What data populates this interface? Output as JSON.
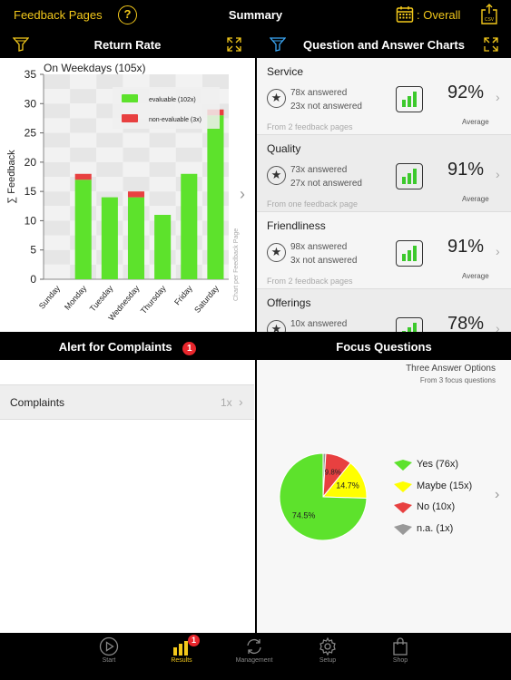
{
  "topbar": {
    "left_label": "Feedback Pages",
    "help_label": "?",
    "title": "Summary",
    "period_label": ": Overall",
    "csv_label": "CSV"
  },
  "return_rate": {
    "header": "Return Rate",
    "side_label": "Chart per Feedback Page"
  },
  "qa_charts": {
    "header": "Question and Answer Charts",
    "items": [
      {
        "name": "Service",
        "answered": "78x answered",
        "not_answered": "23x not answered",
        "from": "From 2 feedback pages",
        "percent": "92%",
        "avg_label": "Average"
      },
      {
        "name": "Quality",
        "answered": "73x answered",
        "not_answered": "27x not answered",
        "from": "From one feedback page",
        "percent": "91%",
        "avg_label": "Average"
      },
      {
        "name": "Friendliness",
        "answered": "98x answered",
        "not_answered": "3x not answered",
        "from": "From 2 feedback pages",
        "percent": "91%",
        "avg_label": "Average"
      },
      {
        "name": "Offerings",
        "answered": "10x answered",
        "not_answered": "",
        "from": "",
        "percent": "78%",
        "avg_label": ""
      }
    ]
  },
  "alerts": {
    "header": "Alert for Complaints",
    "badge": "1",
    "rows": [
      {
        "label": "Complaints",
        "count": "1x"
      }
    ]
  },
  "focus": {
    "header": "Focus Questions",
    "subtitle": "Three Answer Options",
    "sub_subtitle": "From 3 focus questions"
  },
  "tabs": [
    {
      "label": "Start",
      "icon": "play-icon",
      "active": false
    },
    {
      "label": "Results",
      "icon": "bar-chart-icon",
      "active": true,
      "badge": "1"
    },
    {
      "label": "Management",
      "icon": "sync-icon",
      "active": false
    },
    {
      "label": "Setup",
      "icon": "gear-icon",
      "active": false
    },
    {
      "label": "Shop",
      "icon": "shopping-bag-icon",
      "active": false
    }
  ],
  "colors": {
    "accent": "#f2c81b",
    "green": "#5de22c",
    "red": "#e84040",
    "yellow": "#ffff00",
    "gray": "#999999",
    "badge": "#e8262c"
  },
  "chart_data": [
    {
      "type": "bar",
      "title": "On Weekdays (105x)",
      "ylabel": "∑ Feedback",
      "xlabel": "",
      "categories": [
        "Sunday",
        "Monday",
        "Tuesday",
        "Wednesday",
        "Thursday",
        "Friday",
        "Saturday"
      ],
      "stacked": true,
      "series": [
        {
          "name": "evaluable (102x)",
          "color": "#5de22c",
          "values": [
            0,
            17,
            14,
            14,
            11,
            18,
            28
          ]
        },
        {
          "name": "non-evaluable (3x)",
          "color": "#e84040",
          "values": [
            0,
            1,
            0,
            1,
            0,
            0,
            1
          ]
        }
      ],
      "ylim": [
        0,
        35
      ],
      "yticks": [
        0,
        5,
        10,
        15,
        20,
        25,
        30,
        35
      ],
      "grid": true,
      "legend": "top-right"
    },
    {
      "type": "pie",
      "labels": [
        "Yes (76x)",
        "Maybe (15x)",
        "No (10x)",
        "n.a. (1x)"
      ],
      "values": [
        74.5,
        14.7,
        9.8,
        1.0
      ],
      "slice_labels": [
        "74.5%",
        "14.7%",
        "9.8%",
        ""
      ],
      "colors": [
        "#5de22c",
        "#ffff00",
        "#e84040",
        "#999999"
      ],
      "legend": "right"
    }
  ]
}
